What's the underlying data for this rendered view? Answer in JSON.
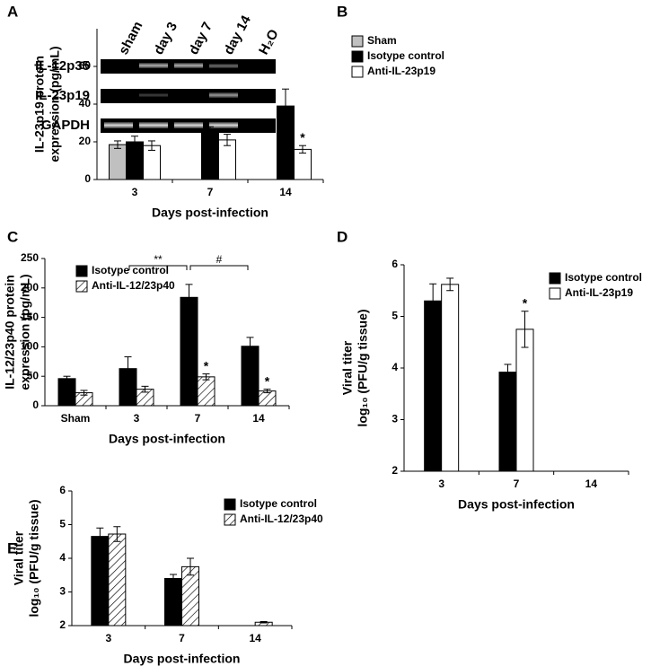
{
  "gel": {
    "panel": "A",
    "lanes": [
      "sham",
      "day 3",
      "day 7",
      "day 14",
      "H₂O"
    ],
    "rows": [
      "IL-12p35",
      "IL-23p19",
      "GAPDH"
    ]
  },
  "chart_data": [
    {
      "type": "bar",
      "panel": "B",
      "ylabel": [
        "IL-23p19 protein",
        "expression (pg/mL)"
      ],
      "xlabel": "Days post-infection",
      "categories": [
        "3",
        "7",
        "14"
      ],
      "ylim": [
        0,
        80
      ],
      "yticks": [
        0,
        20,
        40,
        60
      ],
      "legend": "upper left",
      "series": [
        {
          "name": "Sham",
          "color": "#c0c0c0",
          "values": [
            18.5,
            null,
            null
          ],
          "errors": [
            2,
            null,
            null
          ]
        },
        {
          "name": "Isotype control",
          "color": "#000000",
          "values": [
            20,
            25.5,
            39
          ],
          "errors": [
            3,
            2.5,
            9
          ]
        },
        {
          "name": "Anti-IL-23p19",
          "color": "#ffffff",
          "values": [
            18,
            21,
            16
          ],
          "errors": [
            2.5,
            3,
            2
          ],
          "significance": [
            null,
            null,
            "*"
          ]
        }
      ]
    },
    {
      "type": "bar",
      "panel": "C",
      "ylabel": [
        "IL-12/23p40 protein",
        "expression (pg/mL)"
      ],
      "xlabel": "Days post-infection",
      "categories": [
        "Sham",
        "3",
        "7",
        "14"
      ],
      "ylim": [
        0,
        250
      ],
      "yticks": [
        0,
        50,
        100,
        150,
        200,
        250
      ],
      "legend": "upper left",
      "series": [
        {
          "name": "Isotype control",
          "color": "#000000",
          "values": [
            46,
            63,
            184,
            101
          ],
          "errors": [
            4,
            20,
            22,
            15
          ]
        },
        {
          "name": "Anti-IL-12/23p40",
          "color": "#ffffff",
          "hatch": true,
          "values": [
            22,
            28,
            49,
            25
          ],
          "errors": [
            4,
            5,
            5,
            3
          ],
          "significance": [
            null,
            null,
            "*",
            "*"
          ]
        }
      ],
      "brackets": [
        {
          "text": "**",
          "from": 1,
          "to": 2
        },
        {
          "text": "#",
          "from": 2,
          "to": 3
        }
      ]
    },
    {
      "type": "bar",
      "panel": "D",
      "ylabel": [
        "Viral titer",
        "log₁₀ (PFU/g tissue)"
      ],
      "xlabel": "Days post-infection",
      "categories": [
        "3",
        "7",
        "14"
      ],
      "ylim": [
        2,
        6
      ],
      "yticks": [
        2,
        3,
        4,
        5,
        6
      ],
      "legend": "upper right",
      "series": [
        {
          "name": "Isotype control",
          "color": "#000000",
          "values": [
            5.3,
            3.92,
            null
          ],
          "errors": [
            0.33,
            0.15,
            null
          ]
        },
        {
          "name": "Anti-IL-23p19",
          "color": "#ffffff",
          "values": [
            5.62,
            4.75,
            null
          ],
          "errors": [
            0.12,
            0.35,
            null
          ],
          "significance": [
            null,
            "*",
            null
          ]
        }
      ]
    },
    {
      "type": "bar",
      "panel": "E",
      "ylabel": [
        "Viral titer",
        "log₁₀ (PFU/g tissue)"
      ],
      "xlabel": "Days post-infection",
      "categories": [
        "3",
        "7",
        "14"
      ],
      "ylim": [
        2,
        6
      ],
      "yticks": [
        2,
        3,
        4,
        5,
        6
      ],
      "legend": "upper right",
      "series": [
        {
          "name": "Isotype control",
          "color": "#000000",
          "values": [
            4.65,
            3.4,
            null
          ],
          "errors": [
            0.25,
            0.12,
            null
          ]
        },
        {
          "name": "Anti-IL-12/23p40",
          "color": "#ffffff",
          "hatch": true,
          "values": [
            4.72,
            3.75,
            2.1
          ],
          "errors": [
            0.22,
            0.25,
            0.02
          ]
        }
      ]
    }
  ]
}
